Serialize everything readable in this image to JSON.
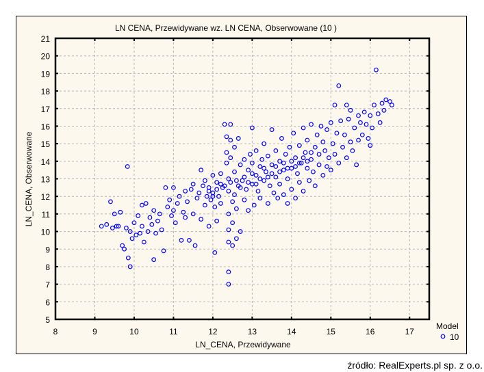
{
  "chart_data": {
    "type": "scatter",
    "title": "LN  CENA, Przewidywane wz.  LN  CENA, Obserwowane (10 )",
    "xlabel": "LN_CENA, Przewidywane",
    "ylabel": "LN_CENA, Obserwowane",
    "xlim": [
      8,
      17.5
    ],
    "ylim": [
      5,
      21
    ],
    "xticks": [
      8,
      9,
      10,
      11,
      12,
      13,
      14,
      15,
      16,
      17
    ],
    "yticks": [
      5,
      6,
      7,
      8,
      9,
      10,
      11,
      12,
      13,
      14,
      15,
      16,
      17,
      18,
      19,
      20,
      21
    ],
    "grid": true,
    "legend": {
      "title": "Model",
      "placement": "bottom-right",
      "entries": [
        "10"
      ]
    },
    "marker_color": "#0000ff",
    "series": [
      {
        "name": "10",
        "points": [
          [
            9.17,
            10.3
          ],
          [
            9.3,
            10.4
          ],
          [
            9.4,
            11.7
          ],
          [
            9.45,
            10.2
          ],
          [
            9.5,
            11.0
          ],
          [
            9.55,
            10.3
          ],
          [
            9.6,
            10.3
          ],
          [
            9.65,
            11.1
          ],
          [
            9.7,
            9.2
          ],
          [
            9.75,
            9.0
          ],
          [
            9.8,
            10.2
          ],
          [
            9.83,
            13.7
          ],
          [
            9.85,
            8.5
          ],
          [
            9.9,
            8.0
          ],
          [
            9.9,
            10.0
          ],
          [
            9.95,
            9.6
          ],
          [
            10.0,
            10.5
          ],
          [
            10.05,
            9.8
          ],
          [
            10.1,
            10.9
          ],
          [
            10.15,
            9.9
          ],
          [
            10.2,
            11.5
          ],
          [
            10.2,
            10.3
          ],
          [
            10.25,
            9.4
          ],
          [
            10.3,
            11.6
          ],
          [
            10.35,
            10.0
          ],
          [
            10.4,
            10.8
          ],
          [
            10.45,
            10.4
          ],
          [
            10.5,
            8.4
          ],
          [
            10.5,
            11.2
          ],
          [
            10.55,
            9.9
          ],
          [
            10.6,
            10.6
          ],
          [
            10.65,
            11.0
          ],
          [
            10.7,
            10.1
          ],
          [
            10.75,
            8.9
          ],
          [
            10.8,
            12.5
          ],
          [
            10.85,
            11.4
          ],
          [
            10.9,
            11.8
          ],
          [
            10.95,
            10.9
          ],
          [
            11.0,
            12.5
          ],
          [
            11.0,
            11.2
          ],
          [
            11.05,
            10.5
          ],
          [
            11.1,
            11.6
          ],
          [
            11.15,
            12.0
          ],
          [
            11.2,
            9.5
          ],
          [
            11.25,
            11.1
          ],
          [
            11.3,
            12.3
          ],
          [
            11.3,
            10.8
          ],
          [
            11.35,
            11.7
          ],
          [
            11.4,
            9.5
          ],
          [
            11.45,
            12.4
          ],
          [
            11.5,
            11.0
          ],
          [
            11.5,
            12.7
          ],
          [
            11.55,
            9.2
          ],
          [
            11.6,
            11.9
          ],
          [
            11.65,
            12.2
          ],
          [
            11.7,
            10.7
          ],
          [
            11.7,
            13.5
          ],
          [
            11.75,
            12.6
          ],
          [
            11.8,
            11.5
          ],
          [
            11.8,
            12.9
          ],
          [
            11.85,
            12.0
          ],
          [
            11.9,
            10.3
          ],
          [
            11.9,
            12.5
          ],
          [
            11.95,
            11.8
          ],
          [
            12.0,
            13.2
          ],
          [
            12.0,
            12.2
          ],
          [
            12.05,
            8.8
          ],
          [
            12.05,
            11.4
          ],
          [
            12.1,
            12.8
          ],
          [
            12.1,
            10.6
          ],
          [
            12.15,
            12.0
          ],
          [
            12.2,
            13.3
          ],
          [
            12.2,
            11.6
          ],
          [
            12.25,
            12.5
          ],
          [
            12.3,
            16.1
          ],
          [
            12.35,
            15.4
          ],
          [
            12.35,
            14.5
          ],
          [
            12.35,
            13.9
          ],
          [
            12.4,
            13.0
          ],
          [
            12.4,
            12.3
          ],
          [
            12.4,
            11.0
          ],
          [
            12.4,
            10.1
          ],
          [
            12.4,
            9.4
          ],
          [
            12.4,
            7.7
          ],
          [
            12.4,
            7.0
          ],
          [
            12.45,
            16.1
          ],
          [
            12.45,
            15.2
          ],
          [
            12.45,
            14.2
          ],
          [
            12.45,
            12.8
          ],
          [
            12.5,
            11.7
          ],
          [
            12.5,
            10.5
          ],
          [
            12.5,
            9.2
          ],
          [
            12.55,
            14.8
          ],
          [
            12.55,
            13.4
          ],
          [
            12.55,
            12.1
          ],
          [
            12.6,
            11.3
          ],
          [
            12.6,
            9.6
          ],
          [
            12.65,
            15.3
          ],
          [
            12.65,
            12.6
          ],
          [
            12.7,
            10.0
          ],
          [
            12.7,
            13.8
          ],
          [
            12.75,
            12.9
          ],
          [
            12.8,
            11.8
          ],
          [
            12.8,
            14.1
          ],
          [
            12.85,
            12.4
          ],
          [
            12.9,
            13.5
          ],
          [
            12.9,
            11.2
          ],
          [
            12.95,
            14.4
          ],
          [
            13.0,
            12.7
          ],
          [
            13.0,
            13.9
          ],
          [
            13.0,
            15.9
          ],
          [
            13.05,
            11.5
          ],
          [
            13.1,
            13.2
          ],
          [
            13.1,
            14.6
          ],
          [
            13.15,
            12.3
          ],
          [
            13.2,
            13.7
          ],
          [
            13.2,
            11.9
          ],
          [
            13.25,
            14.1
          ],
          [
            13.3,
            12.9
          ],
          [
            13.3,
            15.0
          ],
          [
            13.35,
            13.4
          ],
          [
            13.4,
            11.6
          ],
          [
            13.4,
            14.3
          ],
          [
            13.45,
            12.6
          ],
          [
            13.5,
            13.8
          ],
          [
            13.5,
            15.8
          ],
          [
            13.55,
            12.2
          ],
          [
            13.6,
            14.6
          ],
          [
            13.6,
            13.1
          ],
          [
            13.65,
            11.9
          ],
          [
            13.7,
            14.0
          ],
          [
            13.7,
            12.7
          ],
          [
            13.75,
            15.3
          ],
          [
            13.8,
            13.5
          ],
          [
            13.8,
            12.1
          ],
          [
            13.85,
            14.4
          ],
          [
            13.9,
            13.0
          ],
          [
            13.9,
            11.6
          ],
          [
            13.95,
            14.8
          ],
          [
            14.0,
            13.6
          ],
          [
            14.0,
            12.4
          ],
          [
            14.05,
            15.6
          ],
          [
            14.1,
            14.2
          ],
          [
            14.1,
            11.9
          ],
          [
            14.15,
            13.3
          ],
          [
            14.2,
            14.9
          ],
          [
            14.2,
            12.8
          ],
          [
            14.25,
            13.9
          ],
          [
            14.3,
            15.9
          ],
          [
            14.3,
            12.3
          ],
          [
            14.35,
            14.5
          ],
          [
            14.4,
            13.6
          ],
          [
            14.4,
            15.2
          ],
          [
            14.45,
            12.9
          ],
          [
            14.5,
            14.1
          ],
          [
            14.5,
            16.1
          ],
          [
            14.55,
            13.4
          ],
          [
            14.6,
            14.8
          ],
          [
            14.6,
            12.6
          ],
          [
            14.65,
            15.5
          ],
          [
            14.7,
            13.8
          ],
          [
            14.7,
            14.4
          ],
          [
            14.75,
            16.0
          ],
          [
            14.8,
            13.2
          ],
          [
            14.8,
            15.1
          ],
          [
            14.85,
            14.6
          ],
          [
            14.9,
            13.7
          ],
          [
            14.9,
            15.8
          ],
          [
            14.95,
            14.2
          ],
          [
            15.0,
            16.2
          ],
          [
            15.0,
            13.5
          ],
          [
            15.05,
            15.0
          ],
          [
            15.1,
            17.2
          ],
          [
            15.1,
            14.4
          ],
          [
            15.15,
            15.6
          ],
          [
            15.2,
            18.3
          ],
          [
            15.2,
            13.9
          ],
          [
            15.25,
            16.3
          ],
          [
            15.3,
            14.8
          ],
          [
            15.35,
            15.5
          ],
          [
            15.4,
            17.2
          ],
          [
            15.4,
            14.2
          ],
          [
            15.45,
            16.4
          ],
          [
            15.5,
            15.1
          ],
          [
            15.5,
            16.9
          ],
          [
            15.55,
            14.6
          ],
          [
            15.6,
            15.9
          ],
          [
            15.65,
            13.8
          ],
          [
            15.7,
            16.6
          ],
          [
            15.7,
            15.2
          ],
          [
            15.75,
            16.2
          ],
          [
            15.8,
            15.5
          ],
          [
            15.85,
            16.8
          ],
          [
            15.9,
            16.1
          ],
          [
            15.95,
            15.3
          ],
          [
            16.0,
            16.6
          ],
          [
            16.05,
            15.9
          ],
          [
            16.1,
            17.2
          ],
          [
            16.15,
            19.2
          ],
          [
            16.2,
            16.7
          ],
          [
            16.25,
            16.2
          ],
          [
            16.3,
            17.3
          ],
          [
            16.35,
            16.9
          ],
          [
            16.4,
            17.5
          ],
          [
            16.5,
            17.4
          ],
          [
            16.55,
            17.2
          ],
          [
            16.0,
            14.9
          ],
          [
            12.6,
            12.9
          ],
          [
            12.7,
            12.5
          ],
          [
            12.8,
            13.1
          ],
          [
            12.9,
            12.8
          ],
          [
            13.0,
            13.3
          ],
          [
            13.1,
            12.7
          ],
          [
            13.2,
            13.0
          ],
          [
            13.3,
            13.6
          ],
          [
            13.4,
            13.1
          ],
          [
            13.5,
            13.3
          ],
          [
            13.6,
            13.7
          ],
          [
            13.7,
            13.4
          ],
          [
            13.8,
            13.9
          ],
          [
            13.9,
            13.6
          ],
          [
            14.0,
            14.0
          ],
          [
            14.1,
            13.7
          ],
          [
            14.2,
            13.9
          ],
          [
            14.3,
            14.2
          ],
          [
            14.4,
            14.0
          ],
          [
            14.5,
            14.5
          ],
          [
            12.2,
            12.7
          ],
          [
            12.1,
            12.4
          ],
          [
            12.3,
            12.6
          ],
          [
            12.0,
            12.0
          ],
          [
            11.9,
            12.3
          ]
        ]
      }
    ]
  },
  "source": "źródło: RealExperts.pl sp. z o.o."
}
